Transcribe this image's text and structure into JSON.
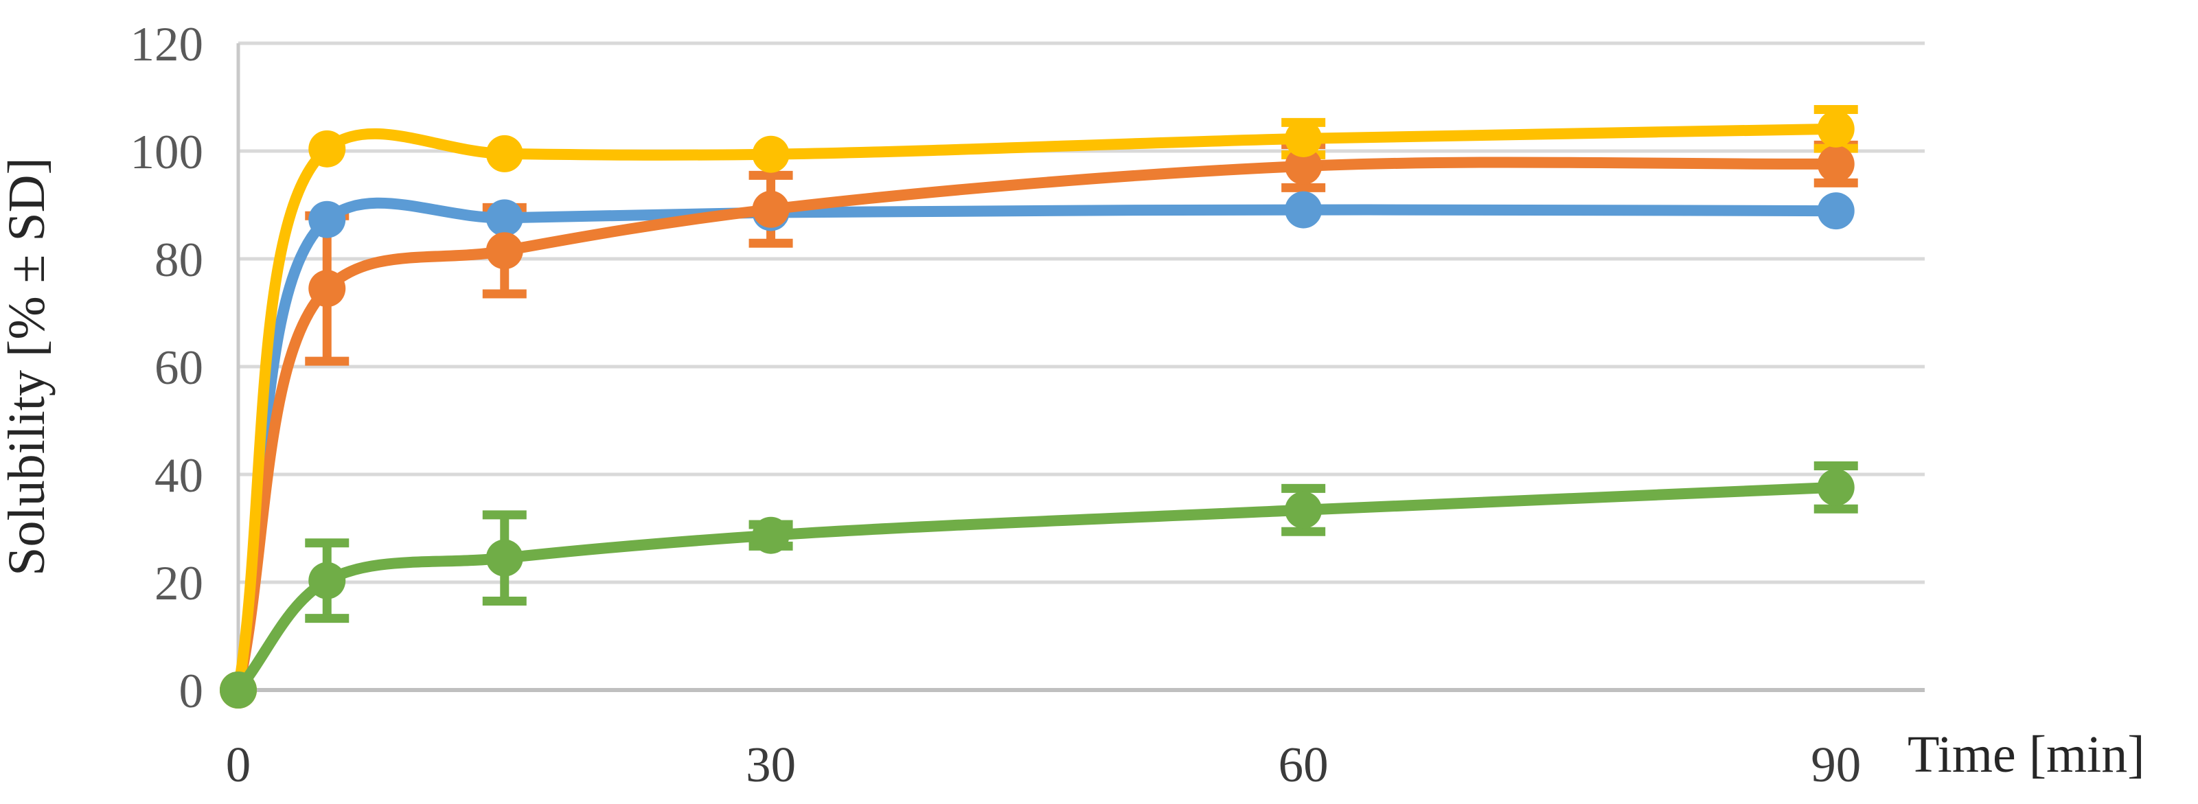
{
  "chart_data": {
    "type": "line",
    "title": "",
    "xlabel": "Time [min]",
    "ylabel": "Solubility [% ± SD]",
    "x": [
      0,
      5,
      15,
      30,
      60,
      90
    ],
    "x_ticks": [
      "0",
      "30",
      "60",
      "90"
    ],
    "x_tick_values": [
      0,
      30,
      60,
      90
    ],
    "y_ticks": [
      "0",
      "20",
      "40",
      "60",
      "80",
      "100",
      "120"
    ],
    "y_tick_values": [
      0,
      20,
      40,
      60,
      80,
      100,
      120
    ],
    "xlim": [
      0,
      95
    ],
    "ylim": [
      0,
      120
    ],
    "grid": "horizontal",
    "legend_position": "none",
    "line_style": "smooth",
    "marker": "circle",
    "series": [
      {
        "name": "series-blue",
        "color": "#5B9BD5",
        "values": [
          0,
          87.3,
          87.6,
          88.6,
          89.1,
          88.9
        ],
        "sd": [
          0,
          0,
          0,
          0,
          0,
          0
        ]
      },
      {
        "name": "series-orange",
        "color": "#ED7D31",
        "values": [
          0,
          74.5,
          81.5,
          89.2,
          97.2,
          97.6
        ],
        "sd": [
          0,
          13.5,
          8,
          6.3,
          4,
          3.5
        ]
      },
      {
        "name": "series-yellow",
        "color": "#FFC000",
        "values": [
          0,
          100.4,
          99.5,
          99.4,
          102.3,
          104.1
        ],
        "sd": [
          0,
          0,
          0,
          0,
          3,
          3.6
        ]
      },
      {
        "name": "series-green",
        "color": "#70AD47",
        "values": [
          0,
          20.3,
          24.5,
          28.7,
          33.4,
          37.6
        ],
        "sd": [
          0,
          7,
          8,
          2,
          4,
          4
        ]
      }
    ],
    "colors": {
      "grid": "#D9D9D9",
      "x_axis_line": "#BFBFBF",
      "y_axis_line": "#C9C9C9",
      "y_tick_text": "#595959",
      "x_tick_text": "#3B3B3B",
      "axis_title_text": "#262626",
      "background": "#FFFFFF"
    }
  }
}
